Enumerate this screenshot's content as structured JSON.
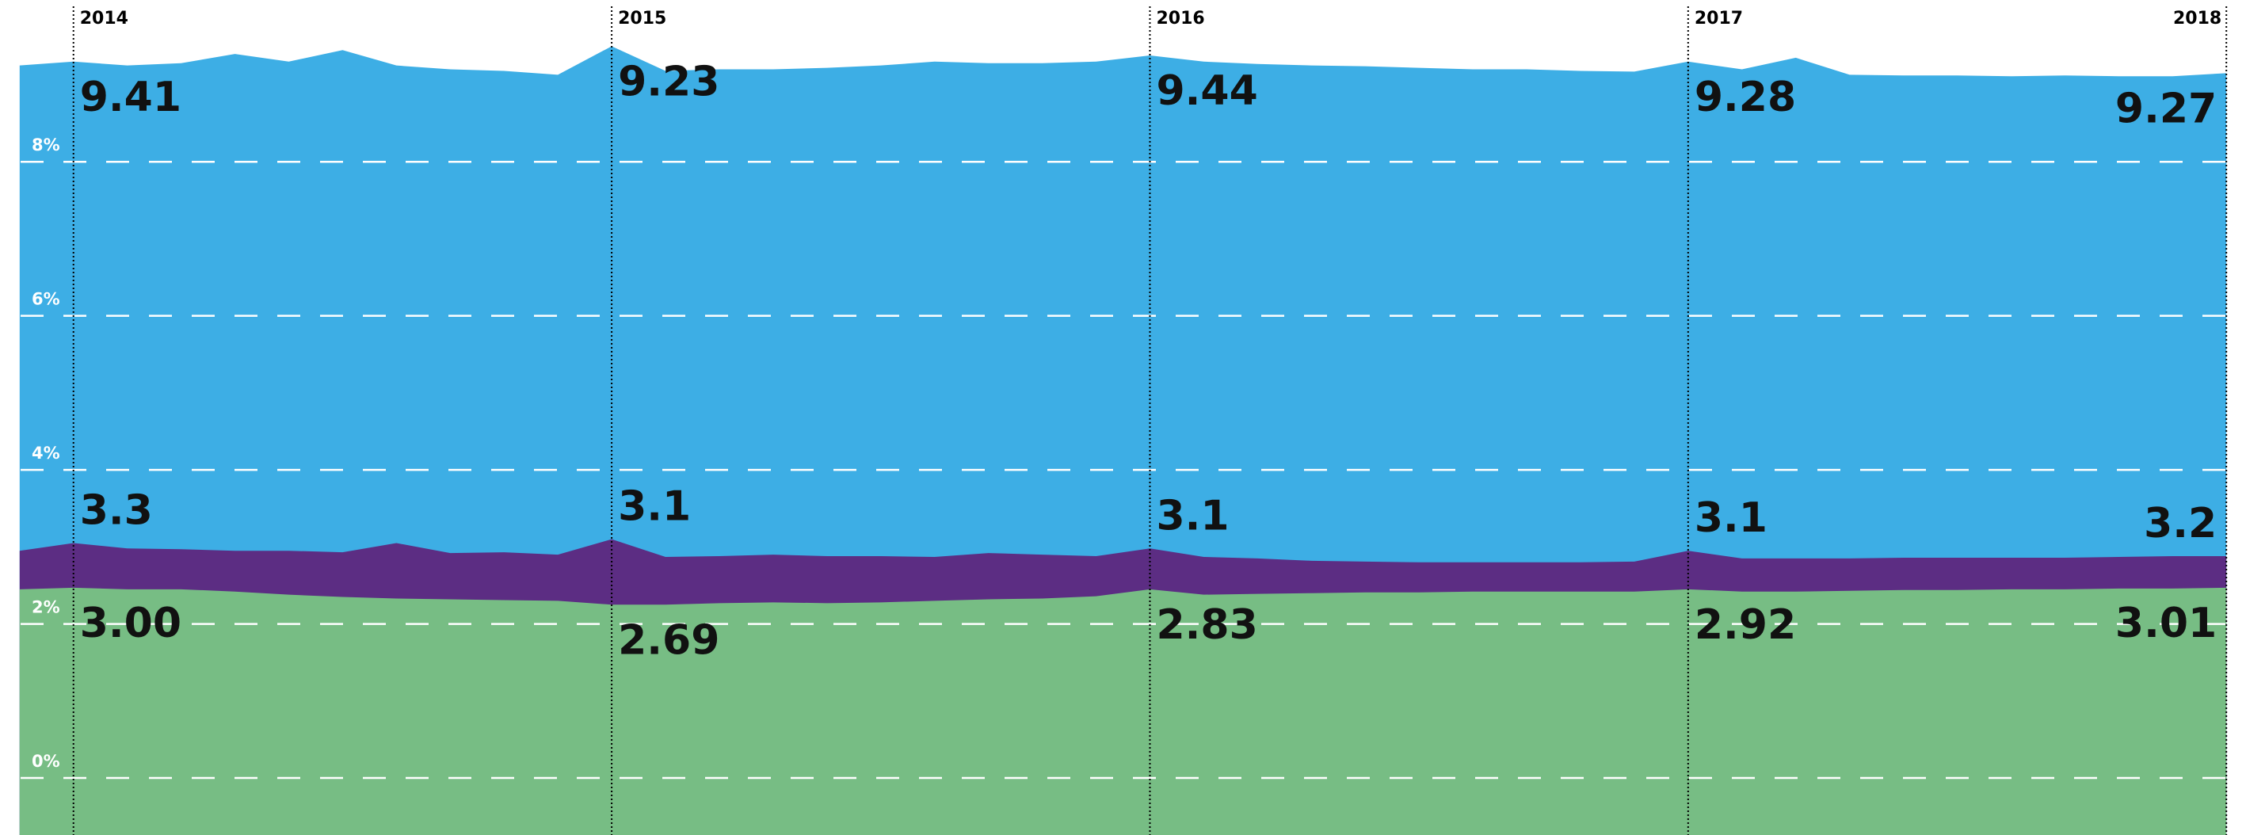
{
  "chart_data": {
    "type": "area",
    "x": [
      2013.9,
      2014.0,
      2014.1,
      2014.2,
      2014.3,
      2014.4,
      2014.5,
      2014.6,
      2014.7,
      2014.8,
      2014.9,
      2015.0,
      2015.1,
      2015.2,
      2015.3,
      2015.4,
      2015.5,
      2015.6,
      2015.7,
      2015.8,
      2015.9,
      2016.0,
      2016.1,
      2016.2,
      2016.3,
      2016.4,
      2016.5,
      2016.6,
      2016.7,
      2016.8,
      2016.9,
      2017.0,
      2017.1,
      2017.2,
      2017.3,
      2017.4,
      2017.5,
      2017.6,
      2017.7,
      2017.8,
      2017.9,
      2018.0
    ],
    "series": [
      {
        "color": "#3daee5",
        "values": [
          9.25,
          9.3,
          9.25,
          9.28,
          9.4,
          9.3,
          9.45,
          9.25,
          9.2,
          9.18,
          9.13,
          9.5,
          9.18,
          9.2,
          9.2,
          9.22,
          9.25,
          9.3,
          9.28,
          9.28,
          9.3,
          9.38,
          9.3,
          9.27,
          9.25,
          9.24,
          9.22,
          9.2,
          9.2,
          9.18,
          9.17,
          9.3,
          9.2,
          9.35,
          9.13,
          9.12,
          9.12,
          9.11,
          9.12,
          9.11,
          9.11,
          9.15
        ]
      },
      {
        "color": "#5c2d83",
        "values": [
          2.95,
          3.05,
          2.98,
          2.97,
          2.95,
          2.95,
          2.93,
          3.05,
          2.92,
          2.93,
          2.9,
          3.1,
          2.87,
          2.88,
          2.9,
          2.88,
          2.88,
          2.87,
          2.92,
          2.9,
          2.88,
          2.98,
          2.87,
          2.85,
          2.82,
          2.81,
          2.8,
          2.8,
          2.8,
          2.8,
          2.81,
          2.95,
          2.85,
          2.85,
          2.85,
          2.86,
          2.86,
          2.86,
          2.86,
          2.87,
          2.88,
          2.88
        ]
      },
      {
        "color": "#77bd84",
        "values": [
          2.45,
          2.47,
          2.45,
          2.45,
          2.42,
          2.38,
          2.35,
          2.33,
          2.32,
          2.31,
          2.3,
          2.25,
          2.25,
          2.27,
          2.28,
          2.27,
          2.28,
          2.3,
          2.32,
          2.33,
          2.36,
          2.45,
          2.38,
          2.39,
          2.4,
          2.41,
          2.41,
          2.42,
          2.42,
          2.42,
          2.42,
          2.45,
          2.42,
          2.42,
          2.43,
          2.44,
          2.44,
          2.45,
          2.45,
          2.46,
          2.46,
          2.47
        ]
      }
    ],
    "xlim": [
      2013.89,
      2018.01
    ],
    "xticks": [
      2014,
      2015,
      2016,
      2017,
      2018
    ],
    "ylim": [
      -0.74,
      10.1
    ],
    "yticks": [
      {
        "value": 0,
        "label": "0%"
      },
      {
        "value": 2,
        "label": "2%"
      },
      {
        "value": 4,
        "label": "4%"
      },
      {
        "value": 6,
        "label": "6%"
      },
      {
        "value": 8,
        "label": "8%"
      }
    ],
    "grid": true,
    "annotations": [
      {
        "x": 2014,
        "series": 0,
        "side": "below",
        "text": "9.41"
      },
      {
        "x": 2015,
        "series": 0,
        "side": "below",
        "text": "9.23"
      },
      {
        "x": 2016,
        "series": 0,
        "side": "below",
        "text": "9.44"
      },
      {
        "x": 2017,
        "series": 0,
        "side": "below",
        "text": "9.28"
      },
      {
        "x": 2018,
        "series": 0,
        "side": "below",
        "text": "9.27"
      },
      {
        "x": 2014,
        "series": 1,
        "side": "above",
        "text": "3.3"
      },
      {
        "x": 2015,
        "series": 1,
        "side": "above",
        "text": "3.1"
      },
      {
        "x": 2016,
        "series": 1,
        "side": "above",
        "text": "3.1"
      },
      {
        "x": 2017,
        "series": 1,
        "side": "above",
        "text": "3.1"
      },
      {
        "x": 2018,
        "series": 1,
        "side": "above",
        "text": "3.2"
      },
      {
        "x": 2014,
        "series": 2,
        "side": "below",
        "text": "3.00"
      },
      {
        "x": 2015,
        "series": 2,
        "side": "below",
        "text": "2.69"
      },
      {
        "x": 2016,
        "series": 2,
        "side": "below",
        "text": "2.83"
      },
      {
        "x": 2017,
        "series": 2,
        "side": "below",
        "text": "2.92"
      },
      {
        "x": 2018,
        "series": 2,
        "side": "below",
        "text": "3.01"
      }
    ]
  }
}
